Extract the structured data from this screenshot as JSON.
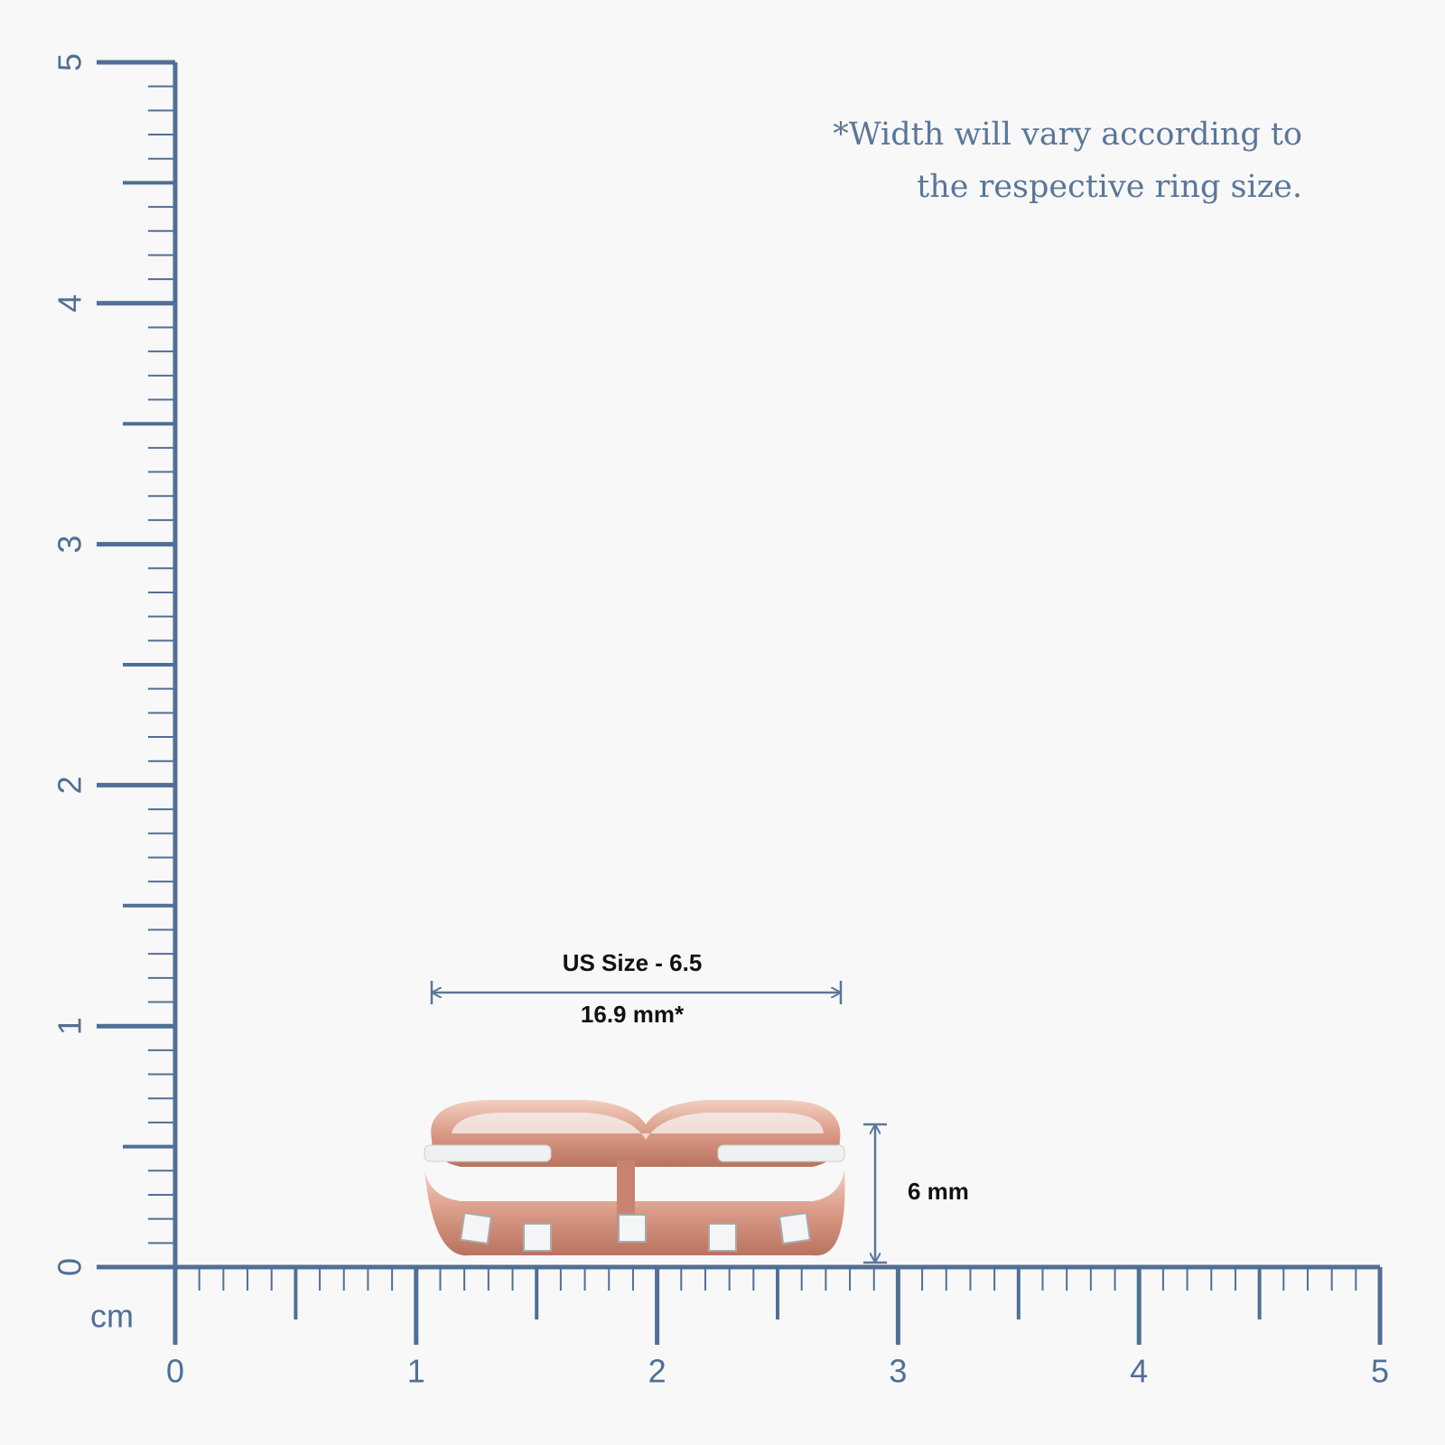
{
  "note": {
    "lines": [
      "*Width will vary according to",
      "the respective ring size."
    ]
  },
  "ruler": {
    "unit": "cm",
    "x_labels": [
      0,
      1,
      2,
      3,
      4,
      5
    ],
    "y_labels": [
      0,
      1,
      2,
      3,
      4,
      5
    ]
  },
  "dimensions": {
    "size": "US Size - 6.5",
    "width": "16.9 mm*",
    "height": "6 mm"
  }
}
